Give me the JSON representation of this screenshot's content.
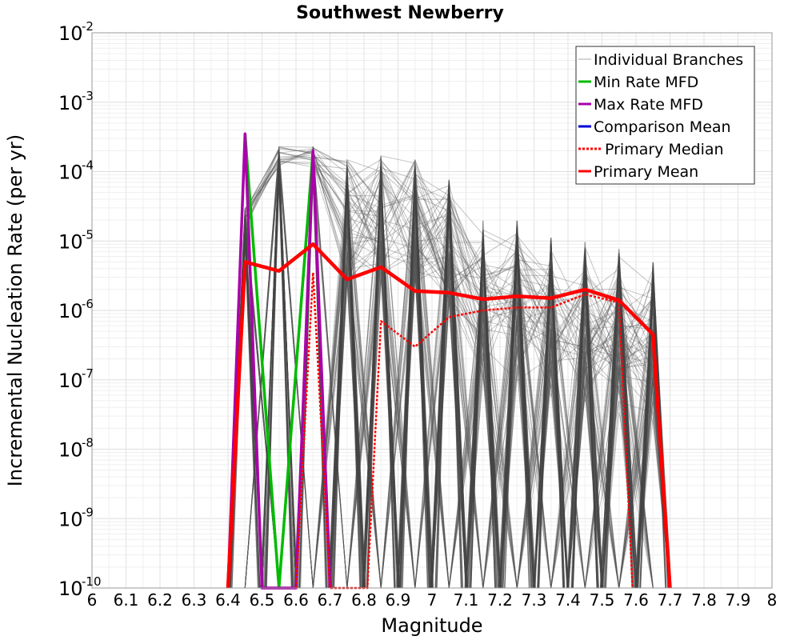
{
  "chart_data": {
    "type": "line",
    "title": "Southwest Newberry",
    "xlabel": "Magnitude",
    "ylabel": "Incremental Nucleation Rate (per yr)",
    "xlim": [
      6,
      8
    ],
    "ylim": [
      1e-10,
      0.01
    ],
    "yscale": "log",
    "grid": true,
    "legend_position": "top-right",
    "x_ticks": [
      "6",
      "6.1",
      "6.2",
      "6.3",
      "6.4",
      "6.5",
      "6.6",
      "6.7",
      "6.8",
      "6.9",
      "7",
      "7.1",
      "7.2",
      "7.3",
      "7.4",
      "7.5",
      "7.6",
      "7.7",
      "7.8",
      "7.9",
      "8"
    ],
    "y_ticks": [
      {
        "value": 1e-10,
        "base": "10",
        "exp": "-10"
      },
      {
        "value": 1e-09,
        "base": "10",
        "exp": "-9"
      },
      {
        "value": 1e-08,
        "base": "10",
        "exp": "-8"
      },
      {
        "value": 1e-07,
        "base": "10",
        "exp": "-7"
      },
      {
        "value": 1e-06,
        "base": "10",
        "exp": "-6"
      },
      {
        "value": 1e-05,
        "base": "10",
        "exp": "-5"
      },
      {
        "value": 0.0001,
        "base": "10",
        "exp": "-4"
      },
      {
        "value": 0.001,
        "base": "10",
        "exp": "-3"
      },
      {
        "value": 0.01,
        "base": "10",
        "exp": "-2"
      }
    ],
    "branch_magnitudes": [
      6.45,
      6.55,
      6.65,
      6.75,
      6.85,
      6.95,
      7.05,
      7.15,
      7.25,
      7.35,
      7.45,
      7.55,
      7.65
    ],
    "branch_peak_rates": [
      3e-05,
      0.00023,
      0.00023,
      0.00015,
      0.00017,
      0.00015,
      8e-05,
      2e-05,
      2e-05,
      1.2e-05,
      1e-05,
      8e-06,
      5e-06
    ],
    "series": [
      {
        "name": "Individual Branches",
        "color": "#555555",
        "style": "thin"
      },
      {
        "name": "Min Rate MFD",
        "color": "#00bb00",
        "style": "solid",
        "x": [
          6.45,
          6.55,
          6.65
        ],
        "y": [
          0.00035,
          1e-10,
          0.0002
        ]
      },
      {
        "name": "Max Rate MFD",
        "color": "#aa00aa",
        "style": "solid",
        "x": [
          6.4,
          6.45,
          6.5,
          6.6,
          6.65,
          6.7
        ],
        "y": [
          1e-10,
          0.00035,
          1e-10,
          1e-10,
          0.0002,
          1e-10
        ]
      },
      {
        "name": "Comparison Mean",
        "color": "#0000dd",
        "style": "solid",
        "x": [
          6.4,
          6.45,
          6.55,
          6.65,
          6.75,
          6.85,
          6.95,
          7.05,
          7.15,
          7.25,
          7.35,
          7.45,
          7.55,
          7.65,
          7.7
        ],
        "y": [
          1e-10,
          5e-06,
          3.7e-06,
          9e-06,
          2.8e-06,
          4.2e-06,
          1.9e-06,
          1.8e-06,
          1.45e-06,
          1.6e-06,
          1.5e-06,
          2e-06,
          1.4e-06,
          4.5e-07,
          1e-10
        ]
      },
      {
        "name": "Primary Median",
        "color": "#ff0000",
        "style": "dotted",
        "x": [
          6.6,
          6.65,
          6.7,
          6.81,
          6.85,
          6.95,
          7.05,
          7.15,
          7.25,
          7.35,
          7.45,
          7.55,
          7.59
        ],
        "y": [
          1e-10,
          3.5e-06,
          1e-10,
          1e-10,
          7e-07,
          3e-07,
          8e-07,
          1e-06,
          1.1e-06,
          1.1e-06,
          1.7e-06,
          1.3e-06,
          1e-10
        ]
      },
      {
        "name": "Primary Mean",
        "color": "#ff0000",
        "style": "thick",
        "x": [
          6.4,
          6.45,
          6.55,
          6.65,
          6.75,
          6.85,
          6.95,
          7.05,
          7.15,
          7.25,
          7.35,
          7.45,
          7.55,
          7.65,
          7.7
        ],
        "y": [
          1e-10,
          5e-06,
          3.7e-06,
          9e-06,
          2.8e-06,
          4.2e-06,
          1.9e-06,
          1.8e-06,
          1.45e-06,
          1.6e-06,
          1.5e-06,
          2e-06,
          1.4e-06,
          4.5e-07,
          1e-10
        ]
      }
    ]
  }
}
